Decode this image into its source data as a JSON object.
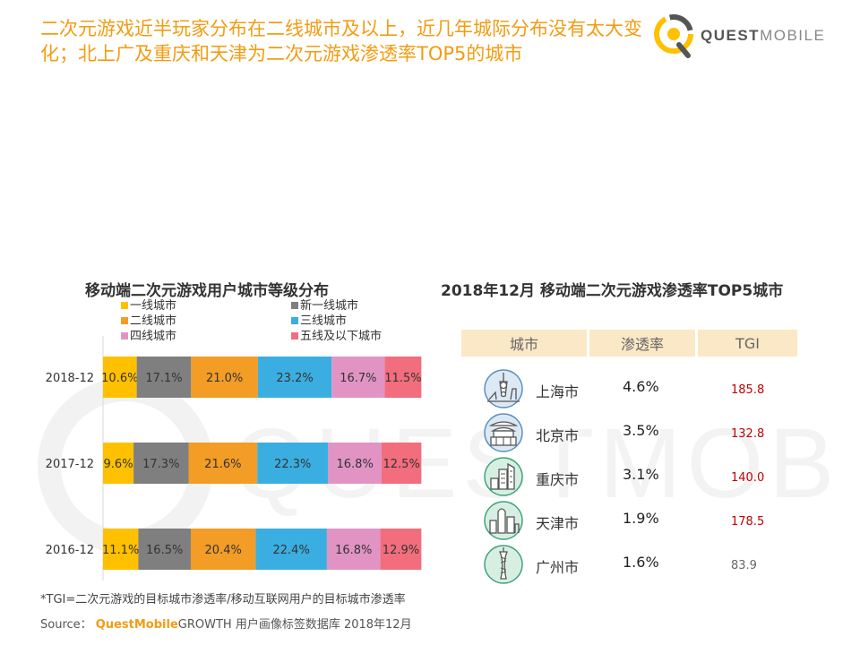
{
  "headline": "二次元游戏近半玩家分布在二线城市及以上，近几年城际分布没有太大变化；北上广及重庆和天津为二次元游戏渗透率TOP5的城市",
  "logo": {
    "brand_bold": "QUEST",
    "brand_light": "MOBILE"
  },
  "watermark_text": "QUESTMOBILE",
  "colors": {
    "accent": "#f39c12",
    "tier1": "#ffc000",
    "new_tier1": "#7f7f7f",
    "tier2": "#f39c26",
    "tier3": "#3aaee0",
    "tier4": "#e194c4",
    "tier5": "#f26d7d",
    "tgi_high": "#c00000",
    "tgi_low": "#666666",
    "table_header_bg": "#fbe8c6"
  },
  "chart_data": [
    {
      "type": "bar",
      "orientation": "horizontal",
      "stacked": true,
      "title": "移动端二次元游戏用户城市等级分布",
      "categories": [
        "2018-12",
        "2017-12",
        "2016-12"
      ],
      "series": [
        {
          "name": "一线城市",
          "values": [
            10.6,
            9.6,
            11.1
          ]
        },
        {
          "name": "新一线城市",
          "values": [
            17.1,
            17.3,
            16.5
          ]
        },
        {
          "name": "二线城市",
          "values": [
            21.0,
            21.6,
            20.4
          ]
        },
        {
          "name": "三线城市",
          "values": [
            23.2,
            22.3,
            22.4
          ]
        },
        {
          "name": "四线城市",
          "values": [
            16.7,
            16.8,
            16.8
          ]
        },
        {
          "name": "五线及以下城市",
          "values": [
            11.5,
            12.5,
            12.9
          ]
        }
      ],
      "value_suffix": "%",
      "xlim": [
        0,
        100
      ],
      "legend_position": "top",
      "grid": false
    },
    {
      "type": "table",
      "title": "2018年12月 移动端二次元游戏渗透率TOP5城市",
      "columns": [
        "城市",
        "渗透率",
        "TGI"
      ],
      "rows": [
        {
          "city": "上海市",
          "icon": "shanghai-tower-icon",
          "penetration": "4.6%",
          "tgi": "185.8",
          "tgi_high": true
        },
        {
          "city": "北京市",
          "icon": "beijing-temple-icon",
          "penetration": "3.5%",
          "tgi": "132.8",
          "tgi_high": true
        },
        {
          "city": "重庆市",
          "icon": "chongqing-skyline-icon",
          "penetration": "3.1%",
          "tgi": "140.0",
          "tgi_high": true
        },
        {
          "city": "天津市",
          "icon": "tianjin-skyline-icon",
          "penetration": "1.9%",
          "tgi": "178.5",
          "tgi_high": true
        },
        {
          "city": "广州市",
          "icon": "guangzhou-tower-icon",
          "penetration": "1.6%",
          "tgi": "83.9",
          "tgi_high": false
        }
      ]
    }
  ],
  "footnote": "*TGI=二次元游戏的目标城市渗透率/移动互联网用户的目标城市渗透率",
  "source": {
    "label": "Source：",
    "brand": "QuestMobile",
    "text": "GROWTH 用户画像标签数据库 2018年12月"
  }
}
